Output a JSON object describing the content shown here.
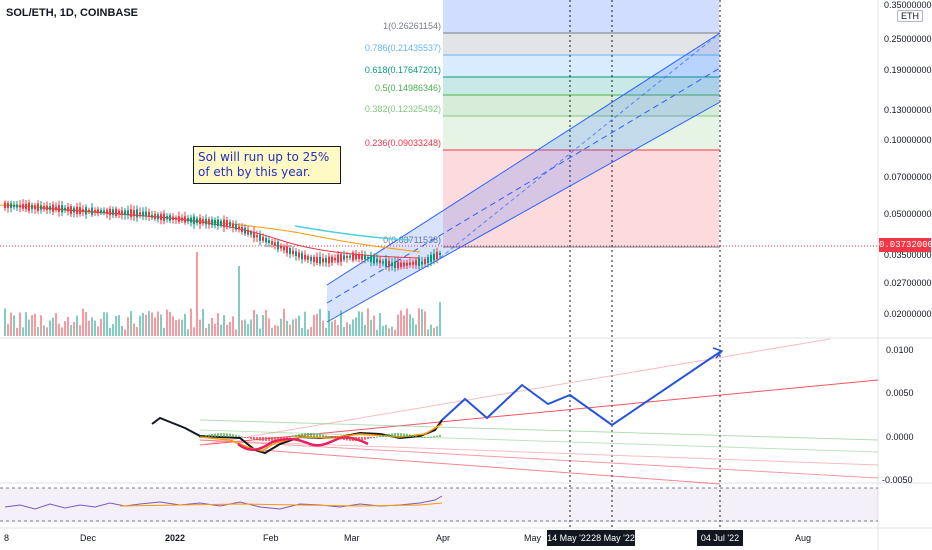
{
  "symbol": {
    "title": "SOL/ETH, 1D, COINBASE"
  },
  "note": {
    "text": "Sol will run up to 25% of eth by this year."
  },
  "price_axis": {
    "unit": "ETH",
    "ticks": [
      "0.35000000",
      "0.25000000",
      "0.19000000",
      "0.13000000",
      "0.10000000",
      "0.07000000",
      "0.05000000",
      "0.03500000",
      "0.02700000",
      "0.02000000"
    ],
    "current_price": "0.03732000"
  },
  "oscillator_axis": {
    "ticks": [
      "0.0100",
      "0.0050",
      "0.0000",
      "-0.0050"
    ]
  },
  "time_axis": {
    "labels": [
      "8",
      "Dec",
      "2022",
      "Feb",
      "Mar",
      "Apr",
      "May",
      "Aug"
    ],
    "highlight_dates": [
      "14 May '22",
      "28 May '22",
      "04 Jul '22"
    ]
  },
  "fib_levels": [
    {
      "label": "1(0.26261154)",
      "color": "#787b86"
    },
    {
      "label": "0.786(0.21435537)",
      "color": "#64b5f6"
    },
    {
      "label": "0.618(0.17647201)",
      "color": "#089981"
    },
    {
      "label": "0.5(0.14986346)",
      "color": "#4caf50"
    },
    {
      "label": "0.382(0.12325492)",
      "color": "#81c784"
    },
    {
      "label": "0.236(0.09033248)",
      "color": "#f23645"
    },
    {
      "label": "0(0.03711538)",
      "color": "#787b86"
    }
  ],
  "colors": {
    "up": "#089981",
    "down": "#f23645",
    "channel": "#2962ff",
    "projection": "#2555d8"
  }
}
